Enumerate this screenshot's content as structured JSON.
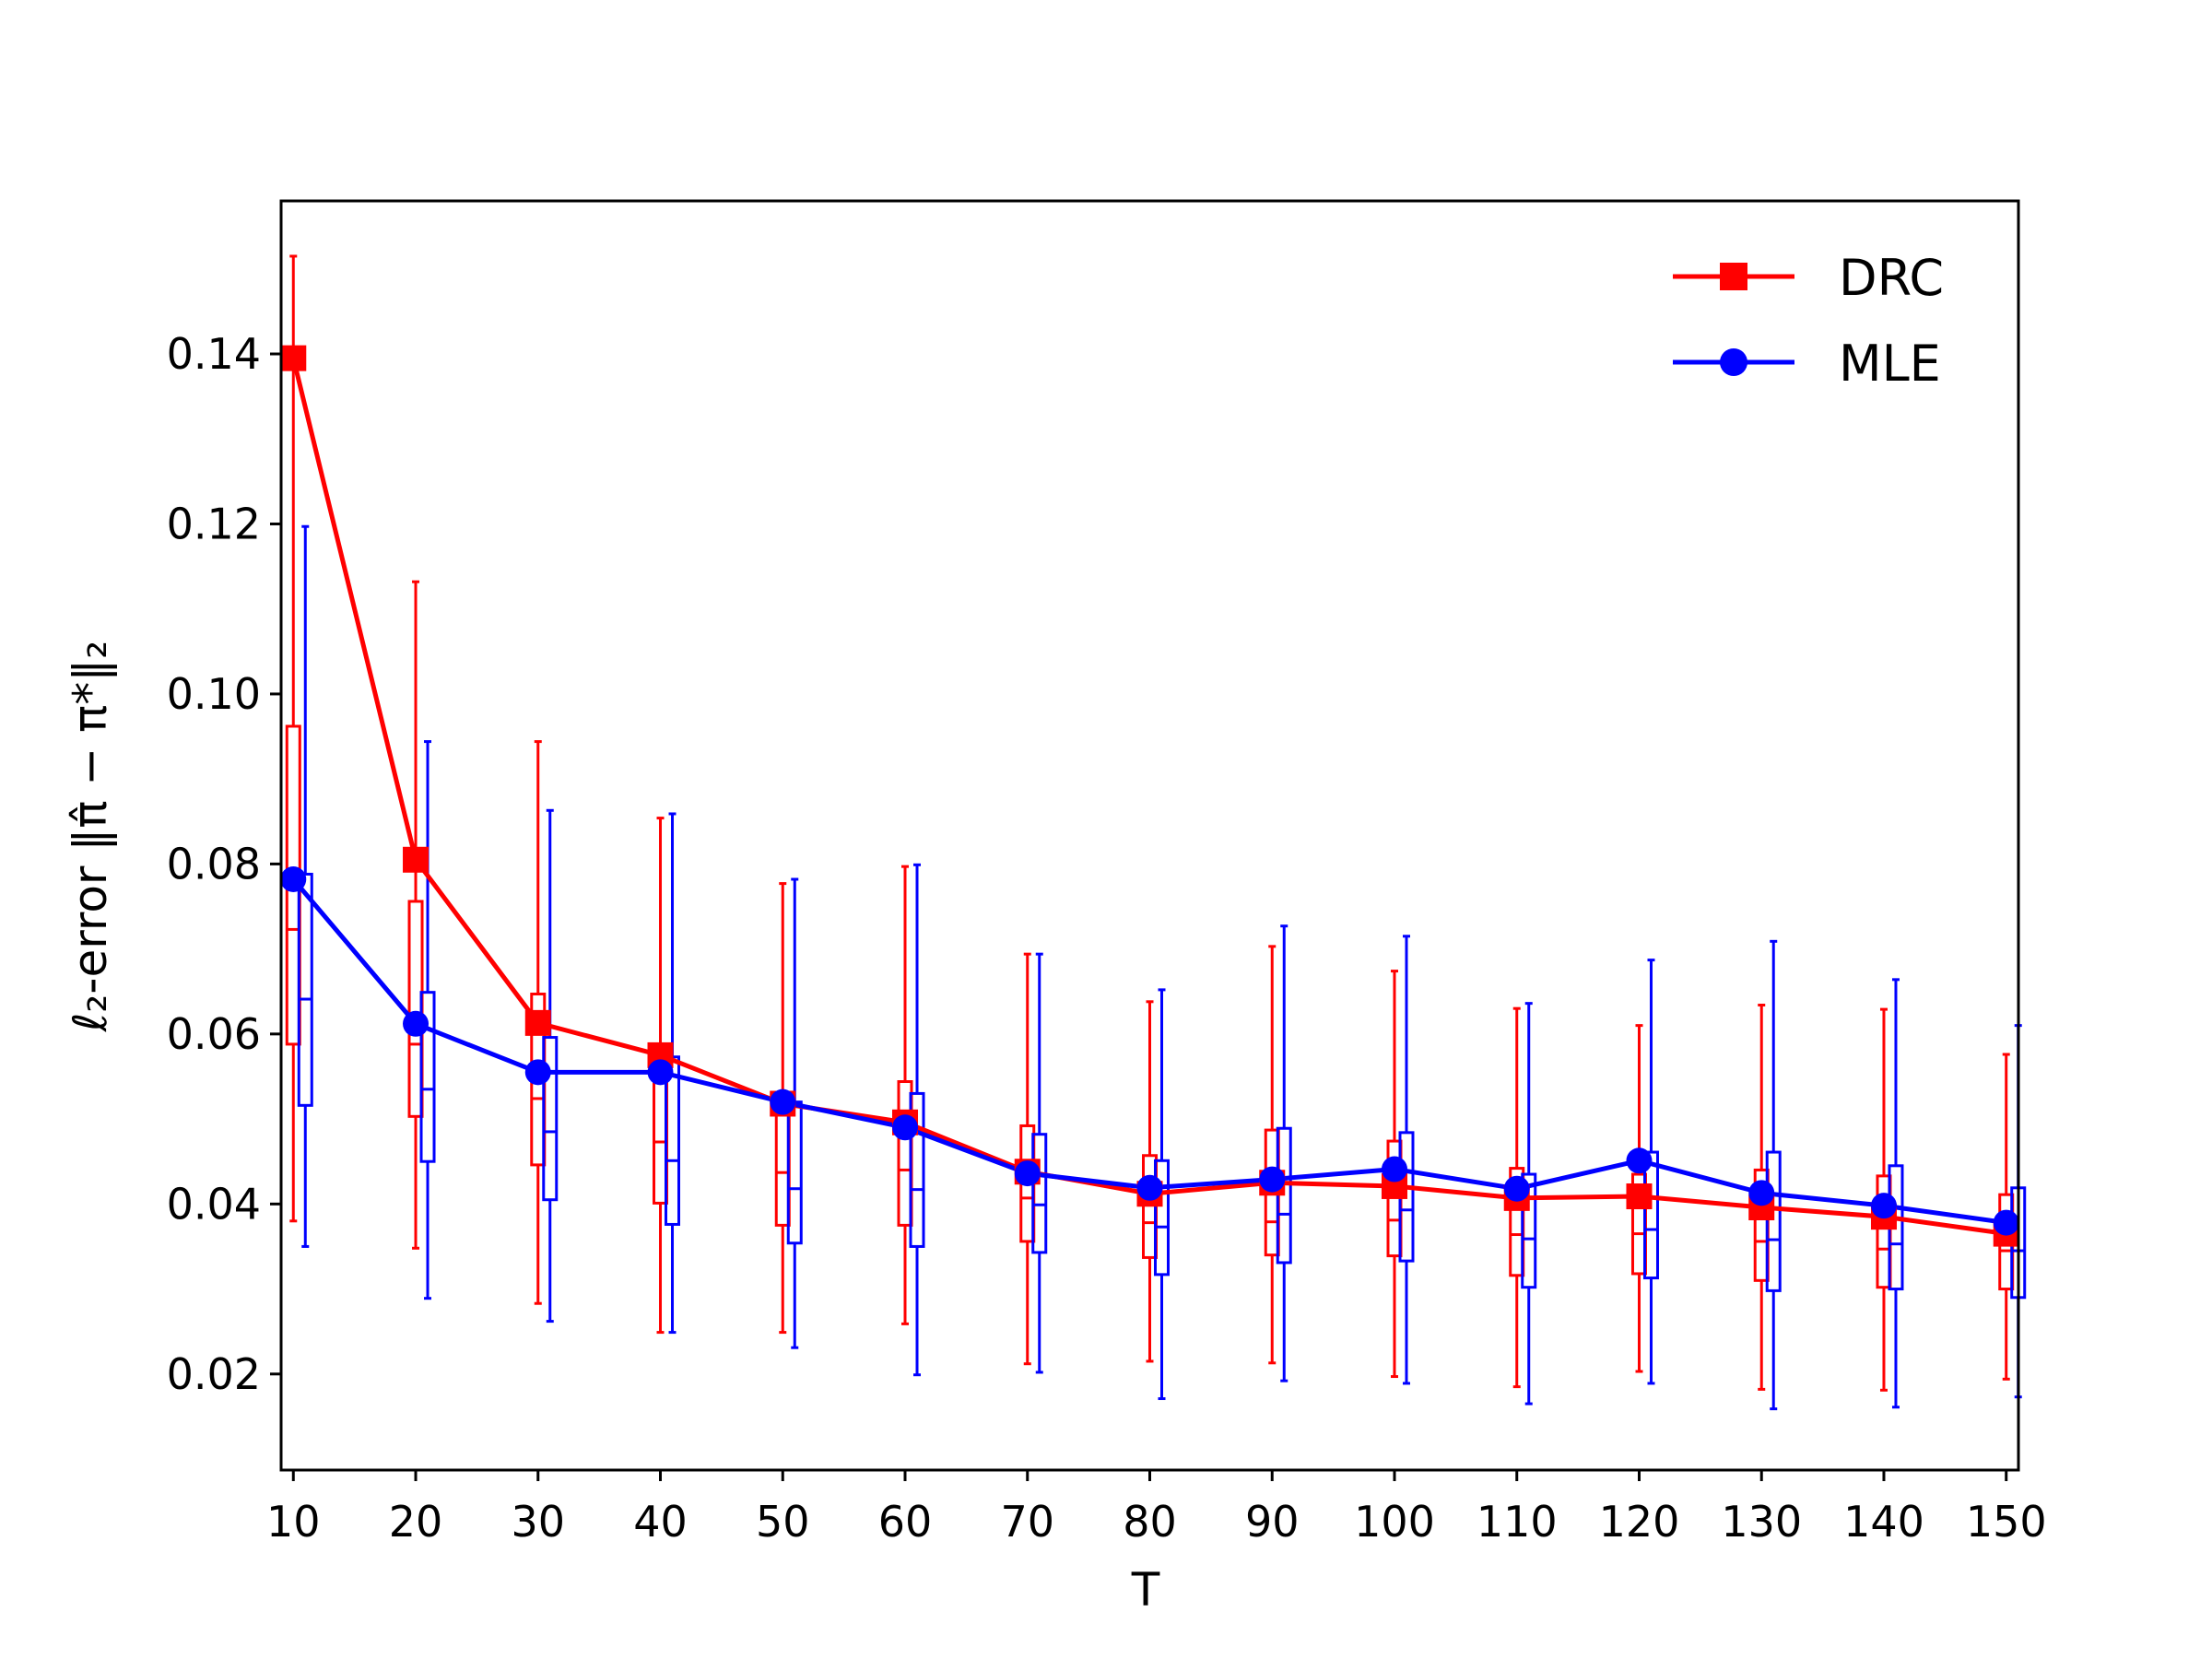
{
  "chart_data": {
    "type": "line",
    "xlabel": "T",
    "ylabel": "ℓ₂-error  ‖π̂ − π*‖₂",
    "xlim": [
      9,
      151
    ],
    "ylim": [
      0.0087,
      0.158
    ],
    "x": [
      10,
      20,
      30,
      40,
      50,
      60,
      70,
      80,
      90,
      100,
      110,
      120,
      130,
      140,
      150
    ],
    "x_ticks": [
      10,
      20,
      30,
      40,
      50,
      60,
      70,
      80,
      90,
      100,
      110,
      120,
      130,
      140,
      150
    ],
    "x_tick_labels": [
      "10",
      "20",
      "30",
      "40",
      "50",
      "60",
      "70",
      "80",
      "90",
      "100",
      "110",
      "120",
      "130",
      "140",
      "150"
    ],
    "y_ticks": [
      0.02,
      0.04,
      0.06,
      0.08,
      0.1,
      0.12,
      0.14
    ],
    "y_tick_labels": [
      "0.02",
      "0.04",
      "0.06",
      "0.08",
      "0.10",
      "0.12",
      "0.14"
    ],
    "grid": false,
    "legend_position": "top-right",
    "series": [
      {
        "name": "DRC",
        "color": "#ff0000",
        "marker": "square",
        "box_offset": 0,
        "mean": [
          0.1395,
          0.0805,
          0.0613,
          0.0575,
          0.0518,
          0.0496,
          0.0438,
          0.0412,
          0.0425,
          0.0421,
          0.0407,
          0.0409,
          0.0396,
          0.0385,
          0.0365
        ],
        "whisker_low": [
          0.038,
          0.0348,
          0.0283,
          0.0249,
          0.0249,
          0.0259,
          0.0212,
          0.0215,
          0.0213,
          0.0197,
          0.0185,
          0.0203,
          0.0182,
          0.0181,
          0.0194
        ],
        "q1": [
          0.0588,
          0.0503,
          0.0446,
          0.0401,
          0.0375,
          0.0375,
          0.0356,
          0.0337,
          0.034,
          0.0339,
          0.0316,
          0.0318,
          0.031,
          0.0302,
          0.03
        ],
        "median": [
          0.0723,
          0.0588,
          0.0524,
          0.0473,
          0.0437,
          0.044,
          0.0407,
          0.0378,
          0.0379,
          0.0381,
          0.0364,
          0.0365,
          0.0356,
          0.0347,
          0.0345
        ],
        "q3": [
          0.0962,
          0.0756,
          0.0647,
          0.0572,
          0.0523,
          0.0544,
          0.0492,
          0.0457,
          0.0487,
          0.0474,
          0.0442,
          0.0435,
          0.044,
          0.0433,
          0.0411
        ],
        "whisker_high": [
          0.1515,
          0.1132,
          0.0944,
          0.0854,
          0.0777,
          0.0797,
          0.0694,
          0.0638,
          0.0703,
          0.0674,
          0.063,
          0.061,
          0.0634,
          0.0629,
          0.0576
        ]
      },
      {
        "name": "MLE",
        "color": "#0000ff",
        "marker": "circle",
        "box_offset": 1,
        "mean": [
          0.0782,
          0.0612,
          0.0555,
          0.0555,
          0.052,
          0.049,
          0.0436,
          0.0419,
          0.0429,
          0.0441,
          0.0418,
          0.0451,
          0.0413,
          0.0398,
          0.0378
        ],
        "whisker_low": [
          0.035,
          0.0289,
          0.0262,
          0.0249,
          0.0231,
          0.0199,
          0.0202,
          0.0171,
          0.0192,
          0.0189,
          0.0165,
          0.0189,
          0.0159,
          0.0161,
          0.0173
        ],
        "q1": [
          0.0516,
          0.045,
          0.0405,
          0.0376,
          0.0354,
          0.035,
          0.0343,
          0.0317,
          0.0331,
          0.0333,
          0.0302,
          0.0313,
          0.0298,
          0.03,
          0.029
        ],
        "median": [
          0.0641,
          0.0535,
          0.0485,
          0.0451,
          0.0418,
          0.0417,
          0.0399,
          0.0373,
          0.0388,
          0.0393,
          0.0359,
          0.037,
          0.0358,
          0.0353,
          0.0345
        ],
        "q3": [
          0.0788,
          0.0649,
          0.0596,
          0.0573,
          0.052,
          0.053,
          0.0482,
          0.0451,
          0.0489,
          0.0484,
          0.0435,
          0.0461,
          0.0461,
          0.0445,
          0.0419
        ],
        "whisker_high": [
          0.1197,
          0.0944,
          0.0863,
          0.0859,
          0.0782,
          0.0799,
          0.0694,
          0.0652,
          0.0727,
          0.0715,
          0.0636,
          0.0687,
          0.0709,
          0.0664,
          0.061
        ]
      }
    ]
  }
}
